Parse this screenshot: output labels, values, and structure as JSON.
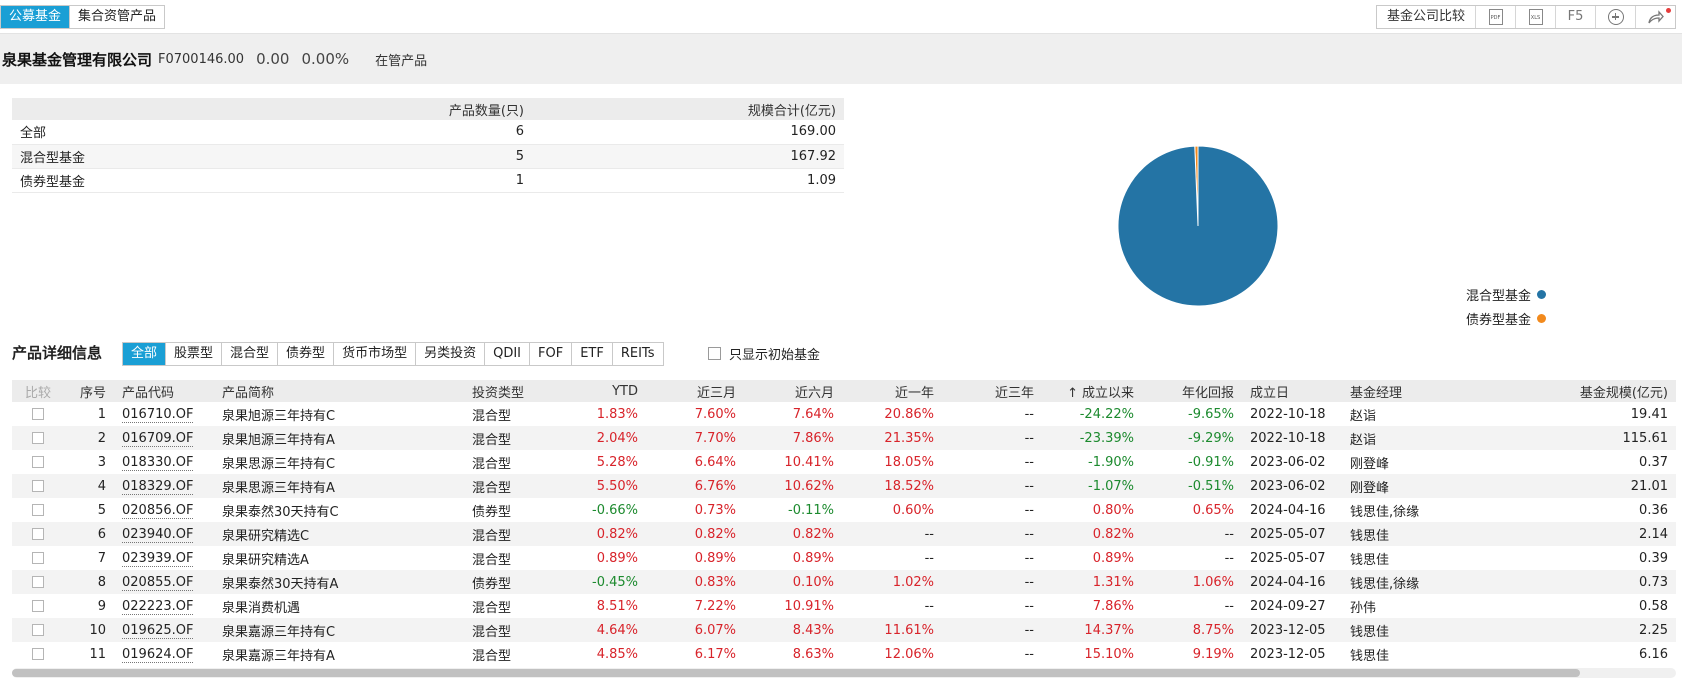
{
  "tabs": [
    {
      "label": "公募基金",
      "active": true
    },
    {
      "label": "集合资管产品",
      "active": false
    }
  ],
  "toolbar": {
    "compare_label": "基金公司比较",
    "pdf_label": "PDF",
    "xls_label": "XLS",
    "refresh_label": "F5",
    "add_icon": "plus-circle-icon",
    "share_icon": "share-icon"
  },
  "company": {
    "name": "泉果基金管理有限公司",
    "code": "F0700146.00",
    "value": "0.00",
    "pct": "0.00%",
    "tag": "在管产品"
  },
  "summary": {
    "headers": [
      "",
      "产品数量(只)",
      "规模合计(亿元)"
    ],
    "rows": [
      [
        "全部",
        "6",
        "169.00"
      ],
      [
        "混合型基金",
        "5",
        "167.92"
      ],
      [
        "债券型基金",
        "1",
        "1.09"
      ]
    ]
  },
  "chart_data": {
    "type": "pie",
    "categories": [
      "混合型基金",
      "债券型基金"
    ],
    "values": [
      167.92,
      1.09
    ],
    "colors": [
      "#2474a5",
      "#f28a1d"
    ],
    "legend_position": "bottom-right"
  },
  "detail": {
    "title": "产品详细信息",
    "filters": [
      "全部",
      "股票型",
      "混合型",
      "债券型",
      "货币市场型",
      "另类投资",
      "QDII",
      "FOF",
      "ETF",
      "REITs"
    ],
    "active_filter": "全部",
    "initial_only_label": "只显示初始基金",
    "headers": [
      "比较",
      "序号",
      "产品代码",
      "产品简称",
      "投资类型",
      "YTD",
      "近三月",
      "近六月",
      "近一年",
      "近三年",
      "成立以来",
      "年化回报",
      "成立日",
      "基金经理",
      "基金规模(亿元)"
    ],
    "sort_arrow": "↑",
    "rows": [
      {
        "no": "1",
        "code": "016710.OF",
        "name": "泉果旭源三年持有C",
        "type": "混合型",
        "ytd": "1.83%",
        "m3": "7.60%",
        "m6": "7.64%",
        "y1": "20.86%",
        "y3": "--",
        "since": "-24.22%",
        "ann": "-9.65%",
        "date": "2022-10-18",
        "mgr": "赵诣",
        "size": "19.41"
      },
      {
        "no": "2",
        "code": "016709.OF",
        "name": "泉果旭源三年持有A",
        "type": "混合型",
        "ytd": "2.04%",
        "m3": "7.70%",
        "m6": "7.86%",
        "y1": "21.35%",
        "y3": "--",
        "since": "-23.39%",
        "ann": "-9.29%",
        "date": "2022-10-18",
        "mgr": "赵诣",
        "size": "115.61"
      },
      {
        "no": "3",
        "code": "018330.OF",
        "name": "泉果思源三年持有C",
        "type": "混合型",
        "ytd": "5.28%",
        "m3": "6.64%",
        "m6": "10.41%",
        "y1": "18.05%",
        "y3": "--",
        "since": "-1.90%",
        "ann": "-0.91%",
        "date": "2023-06-02",
        "mgr": "刚登峰",
        "size": "0.37"
      },
      {
        "no": "4",
        "code": "018329.OF",
        "name": "泉果思源三年持有A",
        "type": "混合型",
        "ytd": "5.50%",
        "m3": "6.76%",
        "m6": "10.62%",
        "y1": "18.52%",
        "y3": "--",
        "since": "-1.07%",
        "ann": "-0.51%",
        "date": "2023-06-02",
        "mgr": "刚登峰",
        "size": "21.01"
      },
      {
        "no": "5",
        "code": "020856.OF",
        "name": "泉果泰然30天持有C",
        "type": "债券型",
        "ytd": "-0.66%",
        "m3": "0.73%",
        "m6": "-0.11%",
        "y1": "0.60%",
        "y3": "--",
        "since": "0.80%",
        "ann": "0.65%",
        "date": "2024-04-16",
        "mgr": "钱思佳,徐缘",
        "size": "0.36"
      },
      {
        "no": "6",
        "code": "023940.OF",
        "name": "泉果研究精选C",
        "type": "混合型",
        "ytd": "0.82%",
        "m3": "0.82%",
        "m6": "0.82%",
        "y1": "--",
        "y3": "--",
        "since": "0.82%",
        "ann": "--",
        "date": "2025-05-07",
        "mgr": "钱思佳",
        "size": "2.14"
      },
      {
        "no": "7",
        "code": "023939.OF",
        "name": "泉果研究精选A",
        "type": "混合型",
        "ytd": "0.89%",
        "m3": "0.89%",
        "m6": "0.89%",
        "y1": "--",
        "y3": "--",
        "since": "0.89%",
        "ann": "--",
        "date": "2025-05-07",
        "mgr": "钱思佳",
        "size": "0.39"
      },
      {
        "no": "8",
        "code": "020855.OF",
        "name": "泉果泰然30天持有A",
        "type": "债券型",
        "ytd": "-0.45%",
        "m3": "0.83%",
        "m6": "0.10%",
        "y1": "1.02%",
        "y3": "--",
        "since": "1.31%",
        "ann": "1.06%",
        "date": "2024-04-16",
        "mgr": "钱思佳,徐缘",
        "size": "0.73"
      },
      {
        "no": "9",
        "code": "022223.OF",
        "name": "泉果消费机遇",
        "type": "混合型",
        "ytd": "8.51%",
        "m3": "7.22%",
        "m6": "10.91%",
        "y1": "--",
        "y3": "--",
        "since": "7.86%",
        "ann": "--",
        "date": "2024-09-27",
        "mgr": "孙伟",
        "size": "0.58"
      },
      {
        "no": "10",
        "code": "019625.OF",
        "name": "泉果嘉源三年持有C",
        "type": "混合型",
        "ytd": "4.64%",
        "m3": "6.07%",
        "m6": "8.43%",
        "y1": "11.61%",
        "y3": "--",
        "since": "14.37%",
        "ann": "8.75%",
        "date": "2023-12-05",
        "mgr": "钱思佳",
        "size": "2.25"
      },
      {
        "no": "11",
        "code": "019624.OF",
        "name": "泉果嘉源三年持有A",
        "type": "混合型",
        "ytd": "4.85%",
        "m3": "6.17%",
        "m6": "8.63%",
        "y1": "12.06%",
        "y3": "--",
        "since": "15.10%",
        "ann": "9.19%",
        "date": "2023-12-05",
        "mgr": "钱思佳",
        "size": "6.16"
      }
    ]
  }
}
